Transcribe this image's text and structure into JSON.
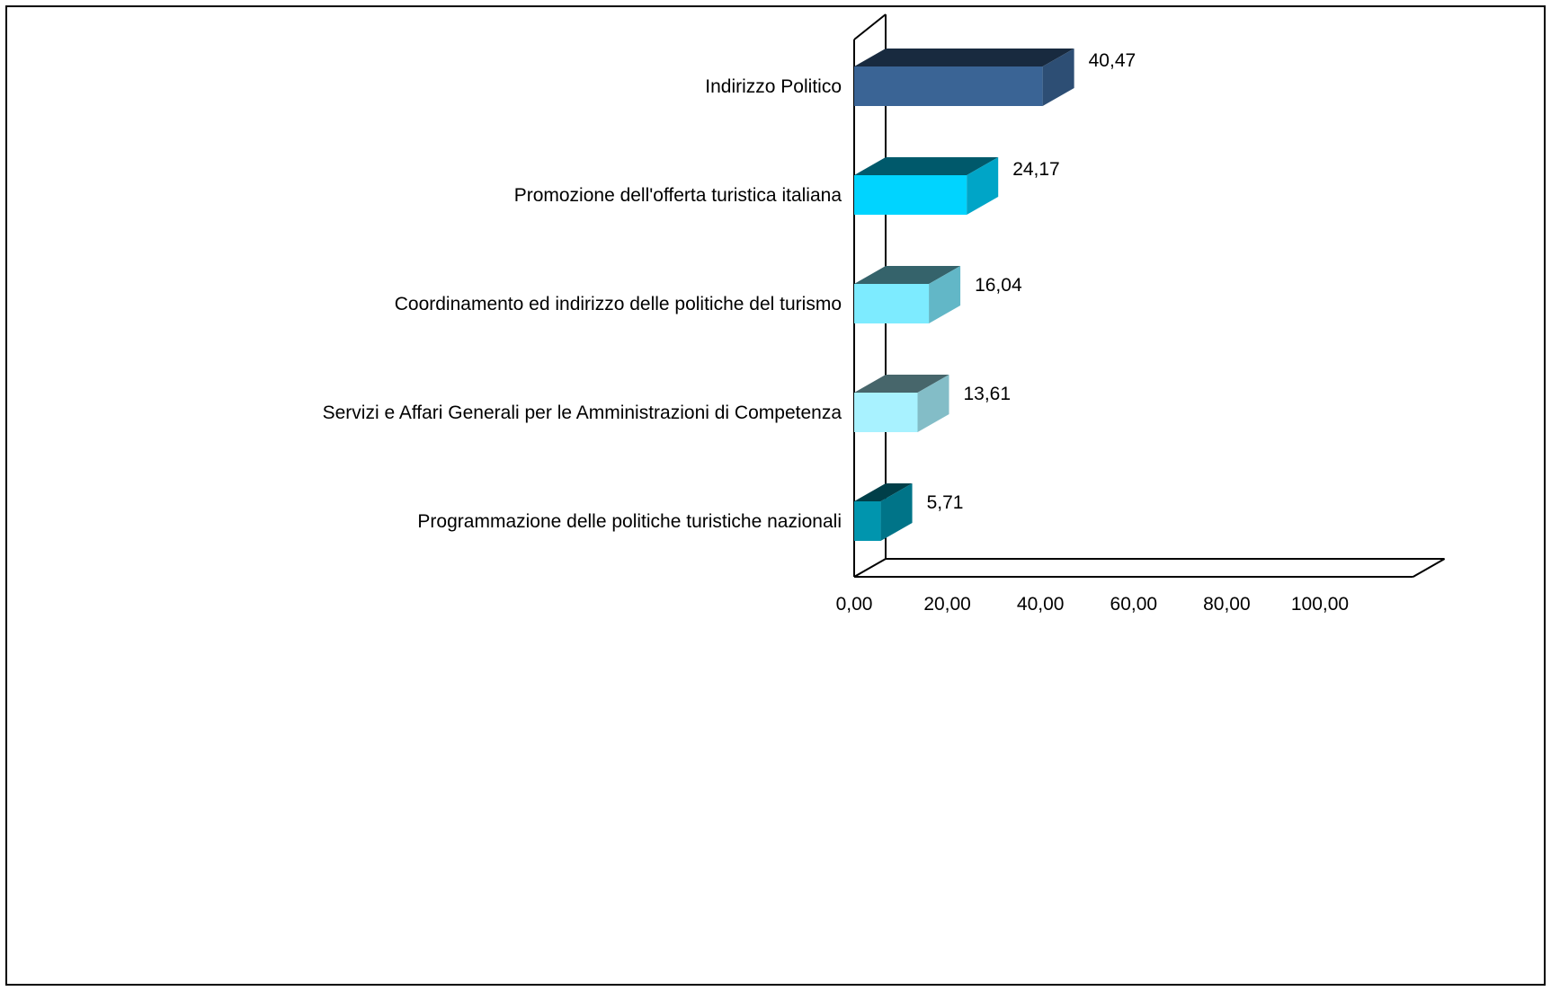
{
  "chart_data": {
    "type": "bar",
    "orientation": "horizontal",
    "style": "3d",
    "categories": [
      "Indirizzo Politico",
      "Promozione dell'offerta turistica italiana",
      "Coordinamento ed indirizzo delle politiche del turismo",
      "Servizi e Affari Generali per le Amministrazioni di Competenza",
      "Programmazione delle politiche turistiche nazionali"
    ],
    "values": [
      40.47,
      24.17,
      16.04,
      13.61,
      5.71
    ],
    "value_labels": [
      "40,47",
      "24,17",
      "16,04",
      "13,61",
      "5,71"
    ],
    "colors": [
      "#3A6495",
      "#00D4FF",
      "#7DEBFF",
      "#A8F2FF",
      "#0095AE"
    ],
    "xlim": [
      0,
      120
    ],
    "x_ticks": [
      0,
      20,
      40,
      60,
      80,
      100
    ],
    "x_tick_labels": [
      "0,00",
      "20,00",
      "40,00",
      "60,00",
      "80,00",
      "100,00"
    ],
    "title": "",
    "xlabel": "",
    "ylabel": "",
    "grid": false,
    "legend": "none"
  }
}
